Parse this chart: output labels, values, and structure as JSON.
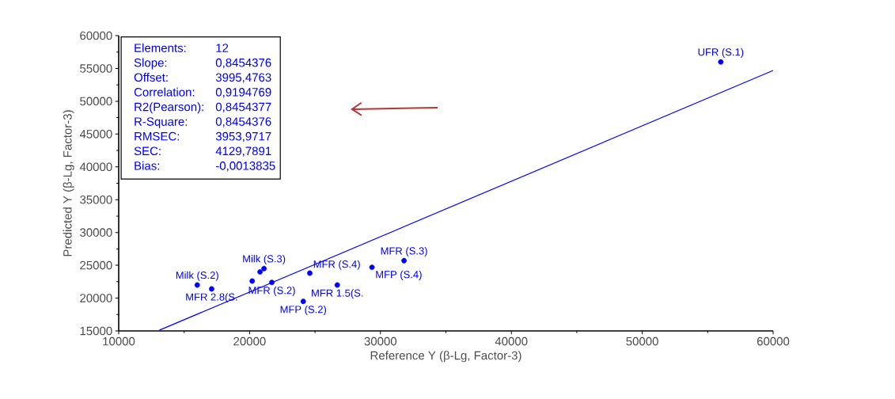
{
  "chart_data": {
    "type": "scatter",
    "xlabel": "Reference Y (β-Lg, Factor-3)",
    "ylabel": "Predicted Y (β-Lg, Factor-3)",
    "xlim": [
      10000,
      60000
    ],
    "ylim": [
      15000,
      60000
    ],
    "xticks": [
      10000,
      20000,
      30000,
      40000,
      50000,
      60000
    ],
    "yticks": [
      15000,
      20000,
      25000,
      30000,
      35000,
      40000,
      45000,
      50000,
      55000,
      60000
    ],
    "grid": false,
    "series": [
      {
        "marker": "circle",
        "color": "#0000ff",
        "x": [
          16000,
          17100,
          20200,
          20800,
          21100,
          21700,
          24100,
          24600,
          26700,
          29350,
          31800,
          56000
        ],
        "values": [
          22000,
          21400,
          22600,
          24000,
          24500,
          22400,
          19500,
          23800,
          22000,
          24700,
          25700,
          56000
        ]
      },
      {
        "type": "line",
        "marker": "none",
        "color": "#0000ff",
        "x": [
          13100,
          60000
        ],
        "values": [
          15100,
          54700
        ]
      }
    ],
    "annotations": [
      "Elements:",
      "12",
      "Slope:",
      "0,8454376",
      "Offset:",
      "3995,4763",
      "Correlation:",
      "0,9194769",
      "R2(Pearson):",
      "0,8454377",
      "R-Square:",
      "0,8454376",
      "RMSEC:",
      "3953,9717",
      "SEC:",
      "4129,7891",
      "Bias:",
      "-0,0013835",
      {
        "text": "Milk (S.2)",
        "x": 16000,
        "y": 22000
      },
      {
        "text": "MFR 2.8(S.",
        "x": 17100,
        "y": 21400
      },
      {
        "text": "Milk (S.3)",
        "x": 21100,
        "y": 24500
      },
      {
        "text": "MFR (S.2)",
        "x": 21700,
        "y": 22400
      },
      {
        "text": "MFP (S.2)",
        "x": 24100,
        "y": 19500
      },
      {
        "text": "MFR (S.4)",
        "x": 24600,
        "y": 23800
      },
      {
        "text": "MFR 1.5(S.",
        "x": 26700,
        "y": 22000
      },
      {
        "text": "MFP (S.4)",
        "x": 29350,
        "y": 24700
      },
      {
        "text": "MFR (S.3)",
        "x": 31800,
        "y": 25700
      },
      {
        "text": "UFR (S.1)",
        "x": 56000,
        "y": 56000
      }
    ]
  }
}
